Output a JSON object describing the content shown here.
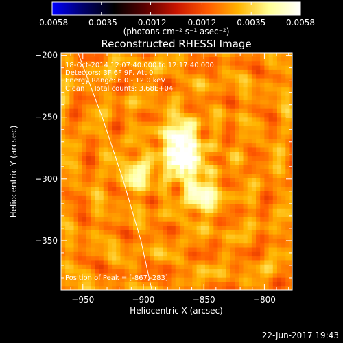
{
  "chart_data": {
    "type": "heatmap",
    "title": "Reconstructed RHESSI Image",
    "xlabel": "Heliocentric X (arcsec)",
    "ylabel": "Heliocentric Y (arcsec)",
    "xlim": [
      -968,
      -777
    ],
    "ylim": [
      -390,
      -198
    ],
    "x_ticks": [
      -950,
      -900,
      -850,
      -800
    ],
    "y_ticks": [
      -200,
      -250,
      -300,
      -350
    ],
    "colorbar": {
      "range": [
        -0.0058,
        0.0058
      ],
      "tick_values": [
        -0.0058,
        -0.0035,
        -0.0012,
        0.0012,
        0.0035,
        0.0058
      ],
      "tick_labels": [
        "-0.0058",
        "-0.0035",
        "-0.0012",
        "0.0012",
        "0.0035",
        "0.0058"
      ],
      "unit_label": "(photons cm⁻² s⁻¹ asec⁻²)",
      "colormap": [
        "#0000ff",
        "#00006a",
        "#000000",
        "#5a0000",
        "#c81400",
        "#ff5a00",
        "#ffb400",
        "#ffff96",
        "#ffffff"
      ]
    },
    "annotations": [
      "18-Oct-2014 12:07:40.000 to 12:17:40.000",
      "Detectors: 3F 6F 9F, Att 0",
      "Energy Range: 6.0 - 12.0 keV",
      "Clean    Total counts: 3.68E+04"
    ],
    "peak_label": "Position of Peak = [-867,-283]",
    "peak": {
      "x": -867,
      "y": -283
    },
    "sources": [
      {
        "x": -867,
        "y": -283,
        "intensity": 0.0058
      },
      {
        "x": -870,
        "y": -262,
        "intensity": 0.0038
      },
      {
        "x": -852,
        "y": -313,
        "intensity": 0.0043
      },
      {
        "x": -905,
        "y": -295,
        "intensity": 0.0034
      }
    ],
    "background_level": 0.0023,
    "limb_curve": [
      [
        -954,
        -198
      ],
      [
        -934,
        -250
      ],
      [
        -917,
        -300
      ],
      [
        -902,
        -350
      ],
      [
        -893,
        -390
      ]
    ]
  },
  "footer": {
    "date": "22-Jun-2017 19:43"
  }
}
